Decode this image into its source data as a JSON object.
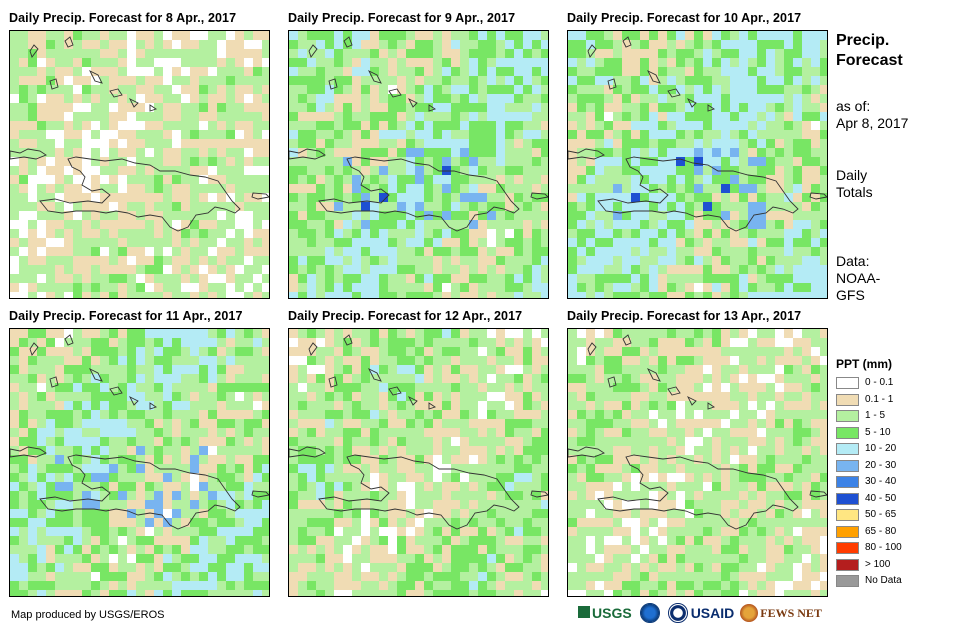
{
  "panels": [
    {
      "title": "Daily Precip. Forecast for 8 Apr., 2017",
      "density": 0.35,
      "intensity": 0.2
    },
    {
      "title": "Daily Precip. Forecast for 9 Apr., 2017",
      "density": 0.85,
      "intensity": 0.65
    },
    {
      "title": "Daily Precip. Forecast for 10 Apr., 2017",
      "density": 0.9,
      "intensity": 0.8
    },
    {
      "title": "Daily Precip. Forecast for 11 Apr., 2017",
      "density": 0.8,
      "intensity": 0.6
    },
    {
      "title": "Daily Precip. Forecast for 12 Apr., 2017",
      "density": 0.6,
      "intensity": 0.3
    },
    {
      "title": "Daily Precip. Forecast for 13 Apr., 2017",
      "density": 0.45,
      "intensity": 0.15
    }
  ],
  "sidebar": {
    "title_line1": "Precip.",
    "title_line2": "Forecast",
    "asof_label": "as of:",
    "asof_date": "Apr 8, 2017",
    "totals_line1": "Daily",
    "totals_line2": "Totals",
    "data_label": "Data:",
    "data_source_line1": "NOAA-",
    "data_source_line2": "GFS"
  },
  "legend": {
    "title": "PPT (mm)",
    "items": [
      {
        "label": "0 - 0.1",
        "color": "#ffffff"
      },
      {
        "label": "0.1 - 1",
        "color": "#f0dcb4"
      },
      {
        "label": "1 - 5",
        "color": "#b4f0a0"
      },
      {
        "label": "5 - 10",
        "color": "#78e664"
      },
      {
        "label": "10 - 20",
        "color": "#b4ebf5"
      },
      {
        "label": "20 - 30",
        "color": "#78b4f0"
      },
      {
        "label": "30 - 40",
        "color": "#3c82e6"
      },
      {
        "label": "40 - 50",
        "color": "#1e50d2"
      },
      {
        "label": "50 - 65",
        "color": "#ffe682"
      },
      {
        "label": "65 - 80",
        "color": "#ffa000"
      },
      {
        "label": "80 - 100",
        "color": "#ff3c00"
      },
      {
        "label": "> 100",
        "color": "#b41e1e"
      },
      {
        "label": "No Data",
        "color": "#999999"
      }
    ]
  },
  "footer": {
    "credit": "Map produced by USGS/EROS",
    "logos": {
      "usgs": "USGS",
      "usaid": "USAID",
      "fewsnet": "FEWS NET"
    }
  }
}
